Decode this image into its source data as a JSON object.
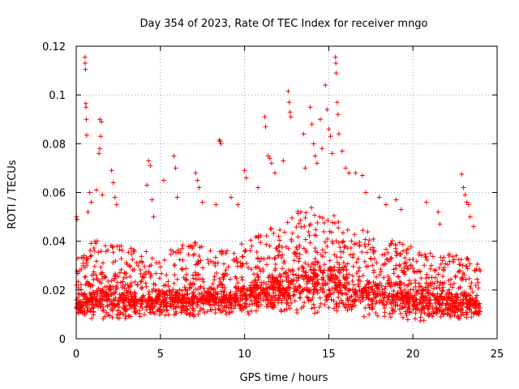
{
  "chart_data": {
    "type": "scatter",
    "title": "Day 354 of 2023, Rate Of TEC Index for receiver mngo",
    "xlabel": "GPS time / hours",
    "ylabel": "ROTI / TECUs",
    "xlim": [
      0,
      25
    ],
    "ylim": [
      0,
      0.12
    ],
    "xticks": [
      0,
      5,
      10,
      15,
      20,
      25
    ],
    "xtick_labels": [
      "0",
      "5",
      "10",
      "15",
      "20",
      "25"
    ],
    "yticks": [
      0,
      0.02,
      0.04,
      0.06,
      0.08,
      0.1,
      0.12
    ],
    "ytick_labels": [
      "0",
      "0.02",
      "0.04",
      "0.06",
      "0.08",
      "0.1",
      "0.12"
    ],
    "grid": true,
    "marker": "plus",
    "color": "#ff0000",
    "series": [
      {
        "name": "ROTI",
        "data_description": "dense cloud of ROTI samples across 0-24 h, baseline ~0.01-0.03 TECU/min",
        "envelope_hours": [
          0,
          1,
          2,
          3,
          4,
          5,
          6,
          7,
          8,
          9,
          10,
          11,
          12,
          13,
          14,
          15,
          16,
          17,
          18,
          19,
          20,
          21,
          22,
          23,
          24
        ],
        "envelope_low": [
          0.008,
          0.007,
          0.007,
          0.007,
          0.008,
          0.008,
          0.008,
          0.008,
          0.009,
          0.009,
          0.009,
          0.009,
          0.01,
          0.01,
          0.01,
          0.01,
          0.009,
          0.009,
          0.008,
          0.008,
          0.007,
          0.007,
          0.007,
          0.007,
          0.008
        ],
        "envelope_median": [
          0.013,
          0.016,
          0.016,
          0.015,
          0.015,
          0.015,
          0.016,
          0.016,
          0.016,
          0.016,
          0.017,
          0.018,
          0.02,
          0.022,
          0.023,
          0.022,
          0.02,
          0.019,
          0.018,
          0.017,
          0.016,
          0.015,
          0.014,
          0.014,
          0.013
        ],
        "envelope_high": [
          0.03,
          0.042,
          0.04,
          0.038,
          0.036,
          0.036,
          0.038,
          0.04,
          0.038,
          0.036,
          0.04,
          0.045,
          0.048,
          0.052,
          0.055,
          0.052,
          0.048,
          0.045,
          0.042,
          0.04,
          0.038,
          0.036,
          0.035,
          0.035,
          0.03
        ],
        "outliers": [
          [
            0.02,
            0.05
          ],
          [
            0.05,
            0.049
          ],
          [
            0.1,
            0.033
          ],
          [
            0.52,
            0.1155
          ],
          [
            0.53,
            0.113
          ],
          [
            0.55,
            0.1105
          ],
          [
            0.57,
            0.0965
          ],
          [
            0.58,
            0.095
          ],
          [
            0.6,
            0.09
          ],
          [
            0.62,
            0.0835
          ],
          [
            0.7,
            0.052
          ],
          [
            0.8,
            0.06
          ],
          [
            0.9,
            0.056
          ],
          [
            1.4,
            0.09
          ],
          [
            1.5,
            0.089
          ],
          [
            1.45,
            0.083
          ],
          [
            1.4,
            0.078
          ],
          [
            1.35,
            0.076
          ],
          [
            1.2,
            0.061
          ],
          [
            1.55,
            0.059
          ],
          [
            2.1,
            0.069
          ],
          [
            2.2,
            0.064
          ],
          [
            2.3,
            0.058
          ],
          [
            2.4,
            0.055
          ],
          [
            4.3,
            0.073
          ],
          [
            4.4,
            0.071
          ],
          [
            4.2,
            0.063
          ],
          [
            4.5,
            0.057
          ],
          [
            4.6,
            0.05
          ],
          [
            5.2,
            0.065
          ],
          [
            5.8,
            0.075
          ],
          [
            5.9,
            0.07
          ],
          [
            6.0,
            0.058
          ],
          [
            7.1,
            0.068
          ],
          [
            7.2,
            0.065
          ],
          [
            7.3,
            0.062
          ],
          [
            7.5,
            0.056
          ],
          [
            8.5,
            0.0815
          ],
          [
            8.55,
            0.081
          ],
          [
            8.6,
            0.08
          ],
          [
            8.3,
            0.055
          ],
          [
            9.2,
            0.058
          ],
          [
            9.6,
            0.055
          ],
          [
            10.0,
            0.069
          ],
          [
            10.1,
            0.066
          ],
          [
            10.8,
            0.062
          ],
          [
            11.2,
            0.091
          ],
          [
            11.25,
            0.087
          ],
          [
            11.4,
            0.075
          ],
          [
            11.5,
            0.074
          ],
          [
            11.6,
            0.072
          ],
          [
            11.8,
            0.068
          ],
          [
            12.6,
            0.1015
          ],
          [
            12.65,
            0.097
          ],
          [
            12.7,
            0.093
          ],
          [
            12.75,
            0.091
          ],
          [
            12.3,
            0.073
          ],
          [
            13.5,
            0.084
          ],
          [
            13.6,
            0.07
          ],
          [
            13.9,
            0.095
          ],
          [
            14.0,
            0.088
          ],
          [
            14.1,
            0.08
          ],
          [
            14.2,
            0.075
          ],
          [
            14.3,
            0.072
          ],
          [
            14.5,
            0.09
          ],
          [
            14.6,
            0.078
          ],
          [
            14.8,
            0.104
          ],
          [
            14.9,
            0.094
          ],
          [
            15.0,
            0.086
          ],
          [
            15.1,
            0.083
          ],
          [
            15.2,
            0.076
          ],
          [
            15.4,
            0.1155
          ],
          [
            15.42,
            0.113
          ],
          [
            15.45,
            0.109
          ],
          [
            15.5,
            0.097
          ],
          [
            15.55,
            0.092
          ],
          [
            15.6,
            0.084
          ],
          [
            15.8,
            0.077
          ],
          [
            16.0,
            0.07
          ],
          [
            16.2,
            0.068
          ],
          [
            16.6,
            0.068
          ],
          [
            17.0,
            0.067
          ],
          [
            17.2,
            0.06
          ],
          [
            18.0,
            0.058
          ],
          [
            18.4,
            0.055
          ],
          [
            19.0,
            0.057
          ],
          [
            19.3,
            0.053
          ],
          [
            20.8,
            0.056
          ],
          [
            21.5,
            0.052
          ],
          [
            21.6,
            0.047
          ],
          [
            22.9,
            0.0675
          ],
          [
            23.0,
            0.062
          ],
          [
            23.1,
            0.059
          ],
          [
            23.2,
            0.056
          ],
          [
            23.3,
            0.055
          ],
          [
            23.4,
            0.05
          ],
          [
            23.6,
            0.046
          ]
        ]
      }
    ]
  }
}
